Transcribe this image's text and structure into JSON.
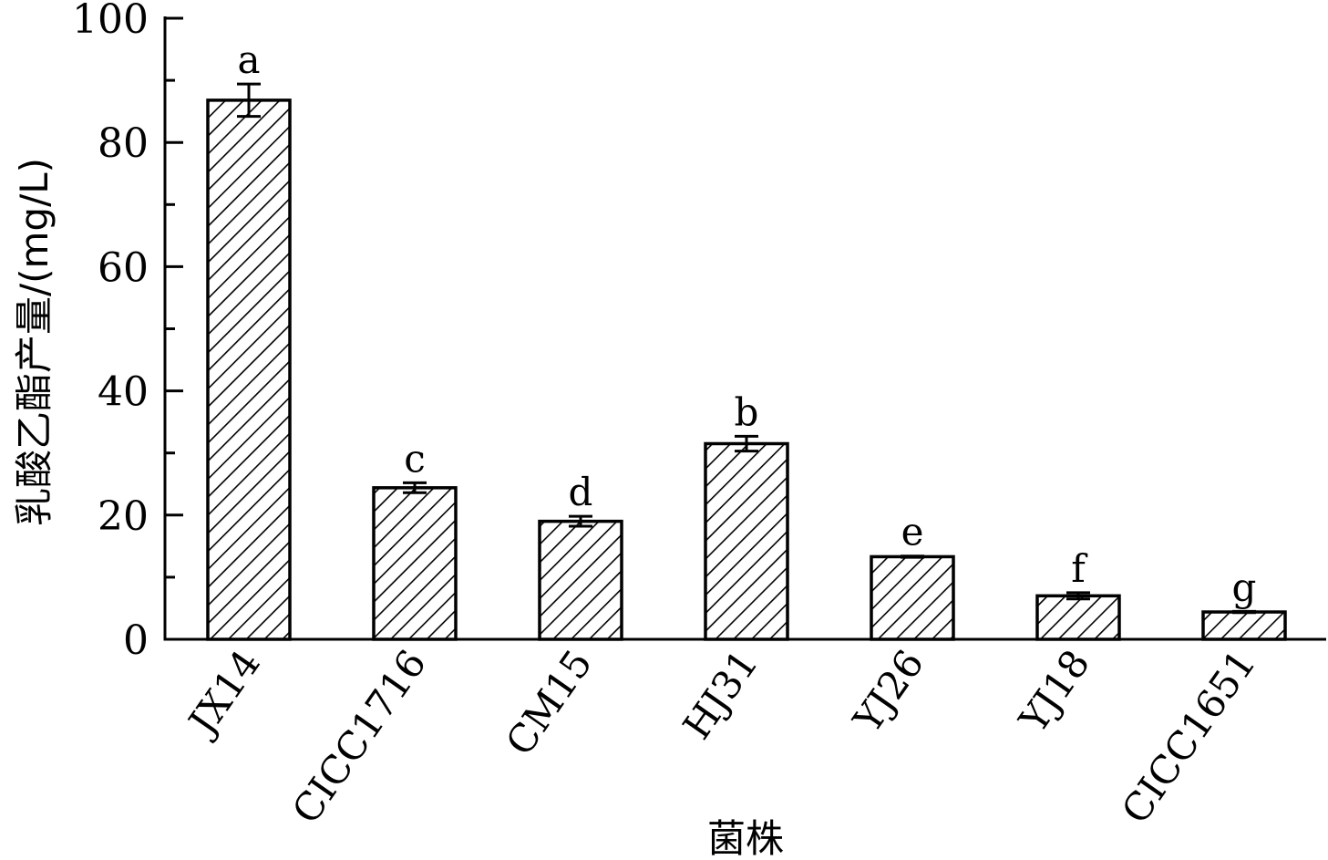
{
  "chart_data": {
    "type": "bar",
    "title": "",
    "xlabel": "菌株",
    "ylabel": "乳酸乙酯产量/(mg/L)",
    "ylim": [
      0,
      100
    ],
    "yticks": [
      0,
      20,
      40,
      60,
      80,
      100
    ],
    "categories": [
      "JX14",
      "CICC1716",
      "CM15",
      "HJ31",
      "YJ26",
      "YJ18",
      "CICC1651"
    ],
    "series": [
      {
        "values": [
          86.8,
          24.4,
          19.0,
          31.5,
          13.3,
          7.0,
          4.4
        ],
        "errors": [
          2.6,
          0.8,
          0.8,
          1.2,
          0.1,
          0.5,
          0.1
        ],
        "significance": [
          "a",
          "c",
          "d",
          "b",
          "e",
          "f",
          "g"
        ]
      }
    ],
    "fill_pattern": "diagonal-hatch",
    "bar_fill_color": "#ffffff",
    "bar_stroke_color": "#000000",
    "grid": false,
    "legend": "none"
  }
}
